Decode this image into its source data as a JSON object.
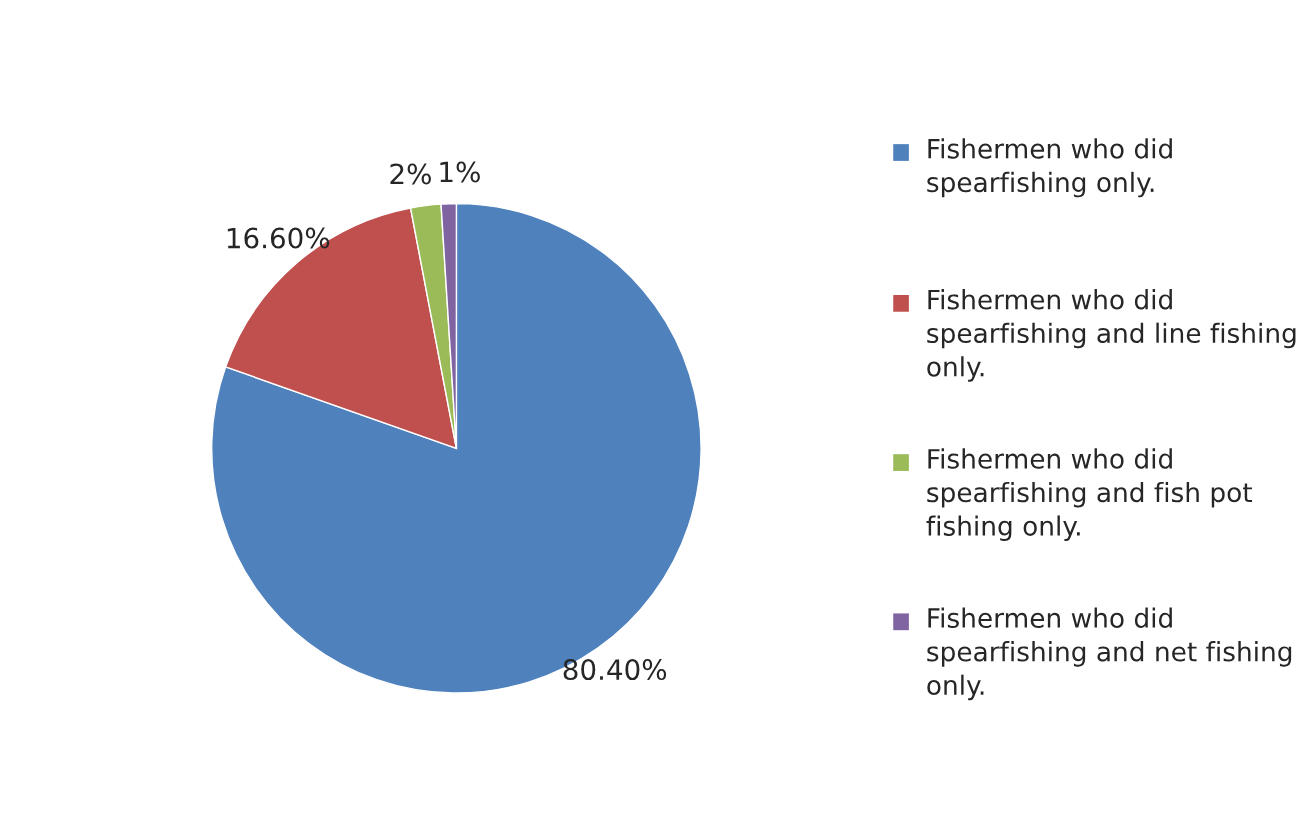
{
  "chart_data": {
    "type": "pie",
    "categories": [
      "Fishermen who did spearfishing only.",
      "Fishermen who did spearfishing and line fishing only.",
      "Fishermen who did spearfishing and fish pot fishing only.",
      "Fishermen who did spearfishing and net fishing only."
    ],
    "values": [
      80.4,
      16.6,
      2,
      1
    ],
    "value_labels": [
      "80.40%",
      "16.60%",
      "2%",
      "1%"
    ],
    "colors": [
      "#4f81bd",
      "#c0504d",
      "#9bbb59",
      "#8064a2"
    ],
    "legend": "right"
  }
}
